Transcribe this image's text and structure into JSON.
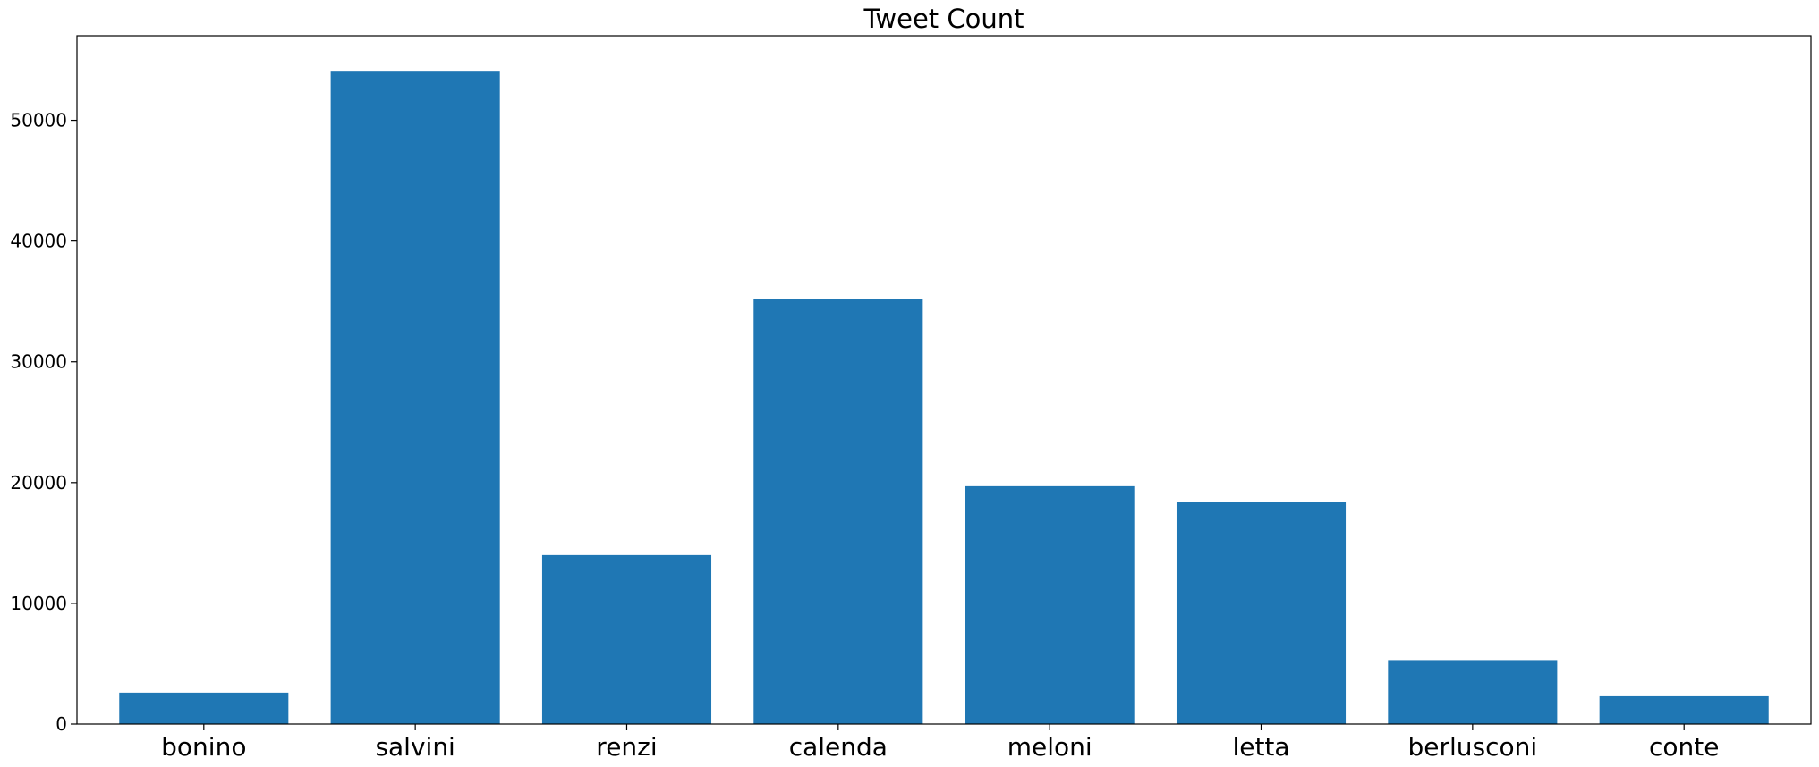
{
  "chart_data": {
    "type": "bar",
    "title": "Tweet Count",
    "xlabel": "",
    "ylabel": "",
    "categories": [
      "bonino",
      "salvini",
      "renzi",
      "calenda",
      "meloni",
      "letta",
      "berlusconi",
      "conte"
    ],
    "values": [
      2600,
      54100,
      14000,
      35200,
      19700,
      18400,
      5300,
      2300
    ],
    "ylim": [
      0,
      57000
    ],
    "yticks": [
      0,
      10000,
      20000,
      30000,
      40000,
      50000
    ],
    "bar_color": "#1f77b4",
    "grid": false,
    "legend": "none"
  }
}
